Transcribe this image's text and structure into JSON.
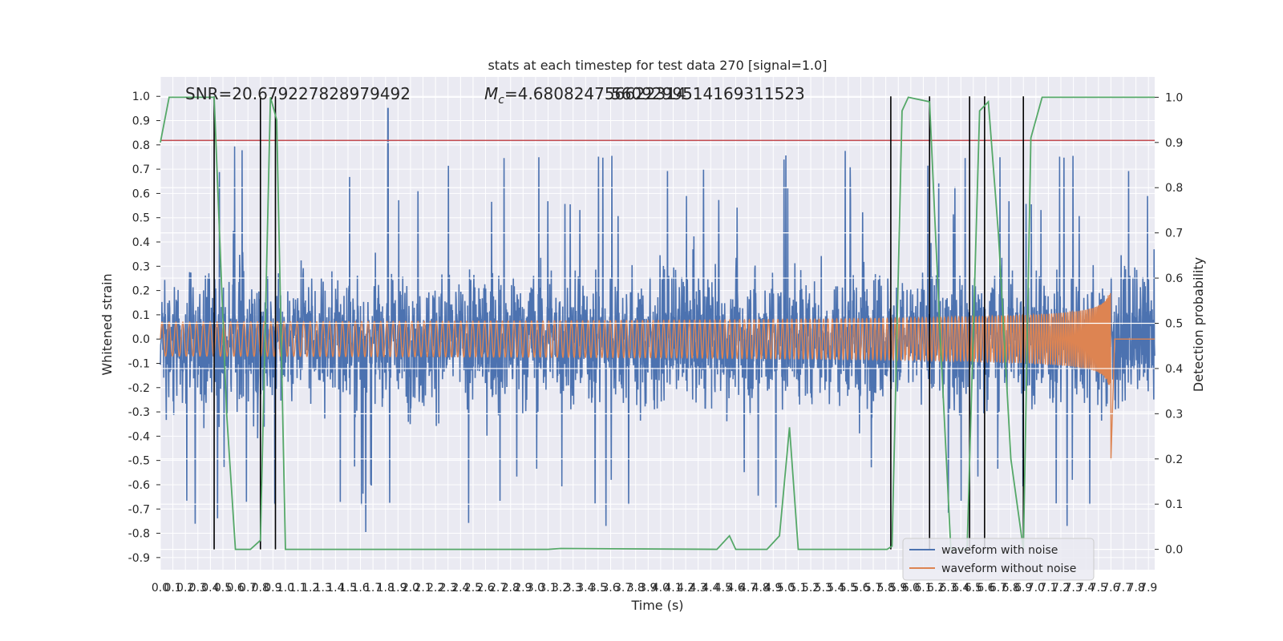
{
  "chart_data": {
    "type": "line",
    "title": "stats at each timestep for test data 270 [signal=1.0]",
    "xlabel": "Time (s)",
    "ylabel": "Whitened strain",
    "y2label": "Detection probability",
    "xlim": [
      0,
      7.95
    ],
    "ylim": [
      -0.95,
      1.08
    ],
    "y2lim": [
      -0.045,
      1.045
    ],
    "x_ticks": [
      0.0,
      0.1,
      0.2,
      0.3,
      0.4,
      0.5,
      0.6,
      0.7,
      0.8,
      0.9,
      1.0,
      1.1,
      1.2,
      1.3,
      1.4,
      1.5,
      1.6,
      1.7,
      1.8,
      1.9,
      2.0,
      2.1,
      2.2,
      2.3,
      2.4,
      2.5,
      2.6,
      2.7,
      2.8,
      2.9,
      3.0,
      3.1,
      3.2,
      3.3,
      3.4,
      3.5,
      3.6,
      3.7,
      3.8,
      3.9,
      4.0,
      4.1,
      4.2,
      4.3,
      4.4,
      4.5,
      4.6,
      4.7,
      4.8,
      4.9,
      5.0,
      5.1,
      5.2,
      5.3,
      5.4,
      5.5,
      5.6,
      5.7,
      5.8,
      5.9,
      6.0,
      6.1,
      6.2,
      6.3,
      6.4,
      6.5,
      6.6,
      6.7,
      6.8,
      6.9,
      7.0,
      7.1,
      7.2,
      7.3,
      7.4,
      7.5,
      7.6,
      7.7,
      7.8,
      7.9
    ],
    "y_ticks": [
      -0.9,
      -0.8,
      -0.7,
      -0.6,
      -0.5,
      -0.4,
      -0.3,
      -0.2,
      -0.1,
      0.0,
      0.1,
      0.2,
      0.3,
      0.4,
      0.5,
      0.6,
      0.7,
      0.8,
      0.9,
      1.0
    ],
    "y2_ticks": [
      0.0,
      0.1,
      0.2,
      0.3,
      0.4,
      0.5,
      0.6,
      0.7,
      0.8,
      0.9,
      1.0
    ],
    "annotations": {
      "snr": "SNR=20.679227828979492",
      "mc": "=4.680824756622314",
      "mc_symbol": "M",
      "mc_sub": "c",
      "overlap": "5609299514169311523"
    },
    "threshold": 0.8183,
    "vlines": [
      0.43,
      0.8,
      0.92,
      5.84,
      6.15,
      6.47,
      6.59,
      6.9
    ],
    "series": [
      {
        "name": "waveform with noise",
        "color": "#4c72b0",
        "amplitude": 0.3,
        "peak_max": 0.95
      },
      {
        "name": "waveform without noise",
        "color": "#dd8452",
        "chirp_start": 0.0,
        "chirp_end": 7.6,
        "amp_start": 0.035,
        "amp_end": 0.35,
        "min_at_merger": -0.5
      },
      {
        "name": "Detection probability",
        "color": "#55a868",
        "points": [
          [
            0.0,
            0.9
          ],
          [
            0.07,
            1.0
          ],
          [
            0.43,
            1.0
          ],
          [
            0.53,
            0.3
          ],
          [
            0.6,
            0.0
          ],
          [
            0.72,
            0.0
          ],
          [
            0.8,
            0.02
          ],
          [
            0.88,
            1.0
          ],
          [
            0.93,
            0.95
          ],
          [
            1.0,
            0.0
          ],
          [
            3.1,
            0.0
          ],
          [
            3.2,
            0.002
          ],
          [
            4.45,
            0.0
          ],
          [
            4.55,
            0.03
          ],
          [
            4.6,
            0.0
          ],
          [
            4.85,
            0.0
          ],
          [
            4.95,
            0.03
          ],
          [
            5.03,
            0.27
          ],
          [
            5.1,
            0.0
          ],
          [
            5.81,
            0.0
          ],
          [
            5.85,
            0.007
          ],
          [
            5.93,
            0.97
          ],
          [
            5.98,
            1.0
          ],
          [
            6.15,
            0.99
          ],
          [
            6.23,
            0.5
          ],
          [
            6.32,
            0.0
          ],
          [
            6.45,
            0.0
          ],
          [
            6.55,
            0.97
          ],
          [
            6.62,
            0.99
          ],
          [
            6.7,
            0.7
          ],
          [
            6.8,
            0.2
          ],
          [
            6.9,
            0.0
          ],
          [
            6.96,
            0.91
          ],
          [
            7.05,
            1.0
          ],
          [
            7.95,
            1.0
          ]
        ]
      }
    ],
    "legend": {
      "placement": "lower right",
      "entries": [
        "waveform with noise",
        "waveform without noise"
      ]
    },
    "grid": true,
    "background": "#eaeaf2",
    "threshold_color": "#c44e52"
  }
}
